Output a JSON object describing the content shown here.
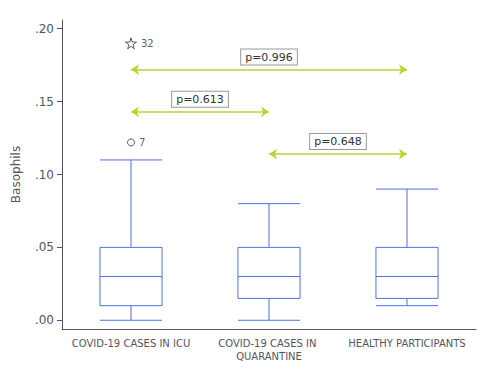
{
  "chart_data": {
    "type": "box",
    "categories": [
      "COVID-19 CASES IN ICU",
      "COVID-19 CASES IN QUARANTINE",
      "HEALTHY PARTICIPANTS"
    ],
    "boxes": [
      {
        "whisker_low": 0.0,
        "q1": 0.01,
        "median": 0.03,
        "q3": 0.05,
        "whisker_high": 0.11,
        "outliers": [
          {
            "value": 0.122,
            "name": "7"
          }
        ],
        "far_outliers": [
          {
            "value": 0.19,
            "name": "32"
          }
        ]
      },
      {
        "whisker_low": 0.0,
        "q1": 0.015,
        "median": 0.03,
        "q3": 0.05,
        "whisker_high": 0.08,
        "outliers": [],
        "far_outliers": []
      },
      {
        "whisker_low": 0.01,
        "q1": 0.015,
        "median": 0.03,
        "q3": 0.05,
        "whisker_high": 0.09,
        "outliers": [],
        "far_outliers": []
      }
    ],
    "annotations": [
      {
        "text": "p=0.996",
        "from": "COVID-19 CASES IN ICU",
        "to": "HEALTHY PARTICIPANTS",
        "y": 0.172
      },
      {
        "text": "p=0.613",
        "from": "COVID-19 CASES IN ICU",
        "to": "COVID-19 CASES IN QUARANTINE",
        "y": 0.143
      },
      {
        "text": "p=0.648",
        "from": "COVID-19 CASES IN QUARANTINE",
        "to": "HEALTHY PARTICIPANTS",
        "y": 0.114
      }
    ],
    "ylabel": "Basophils",
    "ylim": [
      -0.006,
      0.206
    ],
    "yticks": [
      {
        "value": 0.0,
        "label": ".00"
      },
      {
        "value": 0.05,
        "label": ".05"
      },
      {
        "value": 0.1,
        "label": ".10"
      },
      {
        "value": 0.15,
        "label": ".15"
      },
      {
        "value": 0.2,
        "label": ".20"
      }
    ],
    "grid": false
  }
}
